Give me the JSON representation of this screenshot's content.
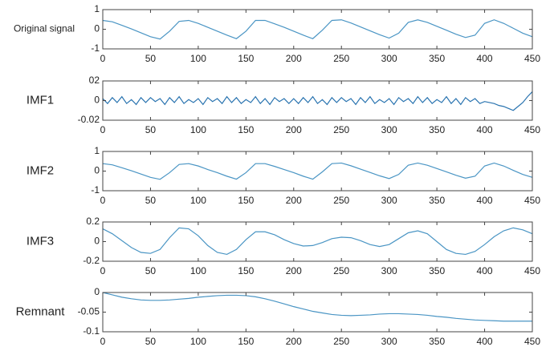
{
  "chart_data": [
    {
      "type": "line",
      "ylabel": "Original signal",
      "color": "#4a95c4",
      "x": [
        0,
        10,
        20,
        30,
        40,
        50,
        60,
        70,
        80,
        90,
        100,
        110,
        120,
        130,
        140,
        150,
        160,
        170,
        180,
        190,
        200,
        210,
        220,
        230,
        240,
        250,
        260,
        270,
        280,
        290,
        300,
        310,
        320,
        330,
        340,
        350,
        360,
        370,
        380,
        390,
        400,
        410,
        420,
        430,
        440,
        450
      ],
      "values": [
        0.45,
        0.38,
        0.2,
        0.02,
        -0.18,
        -0.38,
        -0.5,
        -0.1,
        0.4,
        0.45,
        0.3,
        0.1,
        -0.1,
        -0.3,
        -0.48,
        -0.1,
        0.45,
        0.45,
        0.28,
        0.1,
        -0.1,
        -0.3,
        -0.48,
        -0.05,
        0.45,
        0.48,
        0.32,
        0.12,
        -0.08,
        -0.28,
        -0.45,
        -0.2,
        0.35,
        0.48,
        0.35,
        0.15,
        -0.05,
        -0.25,
        -0.42,
        -0.3,
        0.3,
        0.48,
        0.3,
        0.05,
        -0.2,
        -0.38
      ],
      "xlim": [
        0,
        450
      ],
      "xticks": [
        0,
        50,
        100,
        150,
        200,
        250,
        300,
        350,
        400,
        450
      ],
      "ylim": [
        -1,
        1
      ],
      "yticks": [
        -1,
        0,
        1
      ]
    },
    {
      "type": "line",
      "ylabel": "IMF1",
      "color": "#2a74b0",
      "x": [
        0,
        5,
        10,
        15,
        20,
        25,
        30,
        35,
        40,
        45,
        50,
        55,
        60,
        65,
        70,
        75,
        80,
        85,
        90,
        95,
        100,
        105,
        110,
        115,
        120,
        125,
        130,
        135,
        140,
        145,
        150,
        155,
        160,
        165,
        170,
        175,
        180,
        185,
        190,
        195,
        200,
        205,
        210,
        215,
        220,
        225,
        230,
        235,
        240,
        245,
        250,
        255,
        260,
        265,
        270,
        275,
        280,
        285,
        290,
        295,
        300,
        305,
        310,
        315,
        320,
        325,
        330,
        335,
        340,
        345,
        350,
        355,
        360,
        365,
        370,
        375,
        380,
        385,
        390,
        395,
        400,
        405,
        410,
        415,
        420,
        425,
        430,
        435,
        440,
        445,
        450
      ],
      "values": [
        0.002,
        -0.003,
        0.003,
        -0.002,
        0.004,
        -0.003,
        0.001,
        -0.004,
        0.003,
        -0.002,
        0.003,
        -0.001,
        0.002,
        -0.004,
        0.003,
        -0.002,
        0.004,
        -0.003,
        0.001,
        -0.002,
        0.002,
        -0.004,
        0.003,
        -0.001,
        0.002,
        -0.003,
        0.004,
        -0.002,
        0.003,
        -0.003,
        0.001,
        -0.002,
        0.004,
        -0.003,
        0.002,
        -0.004,
        0.003,
        -0.001,
        0.002,
        -0.003,
        0.002,
        -0.003,
        0.003,
        -0.002,
        0.004,
        -0.003,
        0.001,
        -0.004,
        0.003,
        -0.002,
        0.003,
        -0.001,
        0.002,
        -0.004,
        0.003,
        -0.002,
        0.004,
        -0.003,
        0.001,
        -0.002,
        0.002,
        -0.004,
        0.003,
        -0.001,
        0.002,
        -0.003,
        0.004,
        -0.002,
        0.003,
        -0.003,
        0.001,
        -0.002,
        0.004,
        -0.003,
        0.002,
        -0.004,
        0.003,
        -0.001,
        0.002,
        -0.003,
        -0.001,
        -0.002,
        -0.003,
        -0.005,
        -0.006,
        -0.008,
        -0.01,
        -0.006,
        -0.002,
        0.004,
        0.009
      ],
      "xlim": [
        0,
        450
      ],
      "xticks": [
        0,
        50,
        100,
        150,
        200,
        250,
        300,
        350,
        400,
        450
      ],
      "ylim": [
        -0.02,
        0.02
      ],
      "yticks": [
        -0.02,
        0,
        {
          "value": 0.02,
          "label": "02"
        }
      ]
    },
    {
      "type": "line",
      "ylabel": "IMF2",
      "color": "#4a95c4",
      "x": [
        0,
        10,
        20,
        30,
        40,
        50,
        60,
        70,
        80,
        90,
        100,
        110,
        120,
        130,
        140,
        150,
        160,
        170,
        180,
        190,
        200,
        210,
        220,
        230,
        240,
        250,
        260,
        270,
        280,
        290,
        300,
        310,
        320,
        330,
        340,
        350,
        360,
        370,
        380,
        390,
        400,
        410,
        420,
        430,
        440,
        450
      ],
      "values": [
        0.38,
        0.32,
        0.17,
        0.02,
        -0.15,
        -0.32,
        -0.42,
        -0.08,
        0.34,
        0.38,
        0.26,
        0.08,
        -0.08,
        -0.26,
        -0.41,
        -0.08,
        0.38,
        0.38,
        0.24,
        0.08,
        -0.08,
        -0.26,
        -0.41,
        -0.04,
        0.38,
        0.41,
        0.27,
        0.1,
        -0.07,
        -0.24,
        -0.38,
        -0.17,
        0.3,
        0.41,
        0.3,
        0.13,
        -0.04,
        -0.21,
        -0.36,
        -0.26,
        0.26,
        0.41,
        0.26,
        0.04,
        -0.17,
        -0.32
      ],
      "xlim": [
        0,
        450
      ],
      "xticks": [
        0,
        50,
        100,
        150,
        200,
        250,
        300,
        350,
        400,
        450
      ],
      "ylim": [
        -1,
        1
      ],
      "yticks": [
        -1,
        0,
        1
      ]
    },
    {
      "type": "line",
      "ylabel": "IMF3",
      "color": "#4a95c4",
      "x": [
        0,
        10,
        20,
        30,
        40,
        50,
        60,
        70,
        80,
        90,
        100,
        110,
        120,
        130,
        140,
        150,
        160,
        170,
        180,
        190,
        200,
        210,
        220,
        230,
        240,
        250,
        260,
        270,
        280,
        290,
        300,
        310,
        320,
        330,
        340,
        350,
        360,
        370,
        380,
        390,
        400,
        410,
        420,
        430,
        440,
        450
      ],
      "values": [
        0.13,
        0.08,
        0.01,
        -0.06,
        -0.11,
        -0.12,
        -0.08,
        0.04,
        0.14,
        0.13,
        0.06,
        -0.04,
        -0.11,
        -0.13,
        -0.08,
        0.02,
        0.1,
        0.1,
        0.07,
        0.02,
        -0.02,
        -0.045,
        -0.04,
        -0.01,
        0.03,
        0.045,
        0.04,
        0.01,
        -0.03,
        -0.05,
        -0.03,
        0.03,
        0.09,
        0.11,
        0.08,
        0,
        -0.08,
        -0.12,
        -0.13,
        -0.1,
        -0.03,
        0.05,
        0.11,
        0.14,
        0.12,
        0.08
      ],
      "xlim": [
        0,
        450
      ],
      "xticks": [
        0,
        50,
        100,
        150,
        200,
        250,
        300,
        350,
        400,
        450
      ],
      "ylim": [
        -0.2,
        0.2
      ],
      "yticks": [
        -0.2,
        0,
        0.2
      ]
    },
    {
      "type": "line",
      "ylabel": "Remnant",
      "color": "#4a95c4",
      "x": [
        0,
        10,
        20,
        30,
        40,
        50,
        60,
        70,
        80,
        90,
        100,
        110,
        120,
        130,
        140,
        150,
        160,
        170,
        180,
        190,
        200,
        210,
        220,
        230,
        240,
        250,
        260,
        270,
        280,
        290,
        300,
        310,
        320,
        330,
        340,
        350,
        360,
        370,
        380,
        390,
        400,
        410,
        420,
        430,
        440,
        450
      ],
      "values": [
        0,
        -0.006,
        -0.012,
        -0.016,
        -0.019,
        -0.02,
        -0.02,
        -0.019,
        -0.017,
        -0.015,
        -0.012,
        -0.01,
        -0.008,
        -0.007,
        -0.007,
        -0.008,
        -0.011,
        -0.016,
        -0.022,
        -0.029,
        -0.036,
        -0.042,
        -0.048,
        -0.052,
        -0.056,
        -0.058,
        -0.059,
        -0.058,
        -0.057,
        -0.055,
        -0.054,
        -0.054,
        -0.055,
        -0.056,
        -0.058,
        -0.061,
        -0.063,
        -0.066,
        -0.068,
        -0.07,
        -0.071,
        -0.072,
        -0.073,
        -0.073,
        -0.073,
        -0.073
      ],
      "xlim": [
        0,
        450
      ],
      "xticks": [
        0,
        50,
        100,
        150,
        200,
        250,
        300,
        350,
        400,
        450
      ],
      "ylim": [
        -0.1,
        0
      ],
      "yticks": [
        -0.1,
        -0.05,
        0
      ]
    }
  ]
}
